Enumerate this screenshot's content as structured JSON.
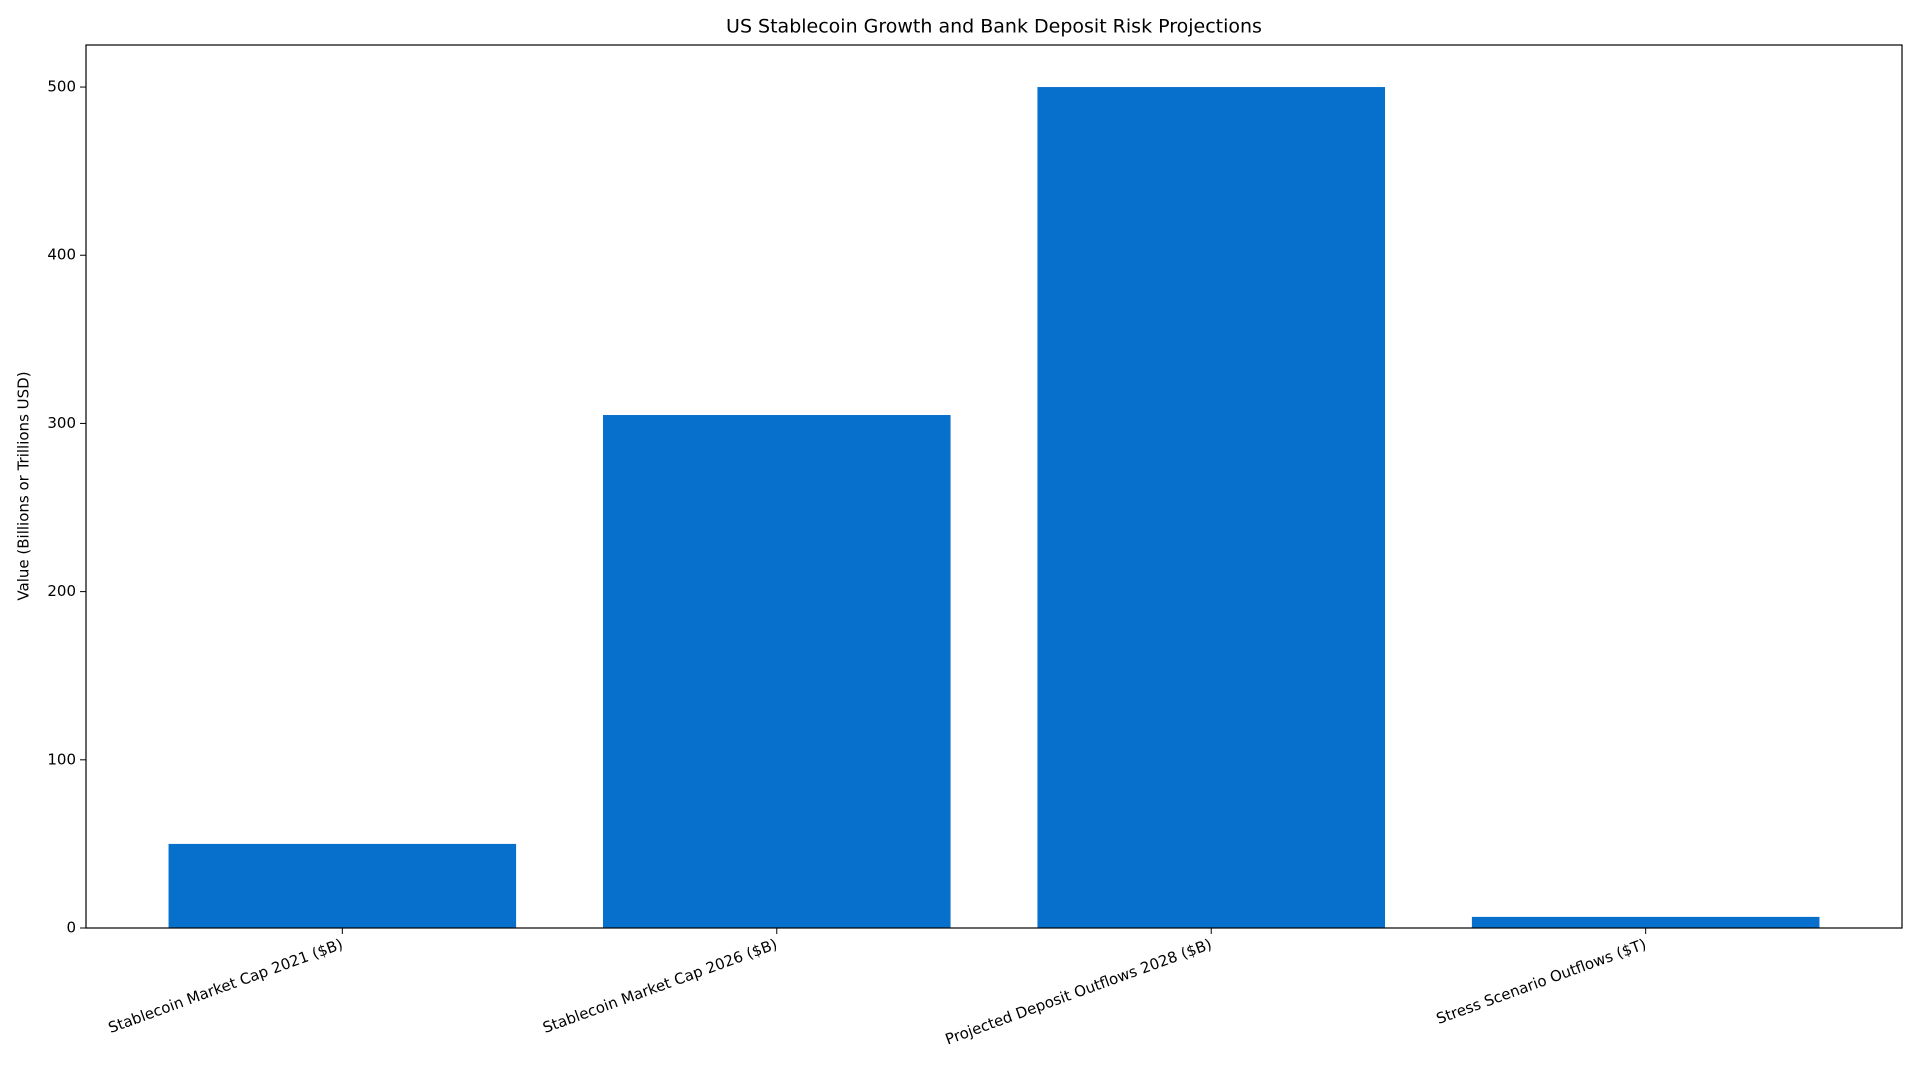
{
  "chart_data": {
    "type": "bar",
    "title": "US Stablecoin Growth and Bank Deposit Risk Projections",
    "y_label": "Value (Billions or Trillions USD)",
    "categories": [
      "Stablecoin Market Cap 2021 ($B)",
      "Stablecoin Market Cap 2026 ($B)",
      "Projected Deposit Outflows 2028 ($B)",
      "Stress Scenario Outflows ($T)"
    ],
    "values": [
      50,
      305,
      500,
      6.6
    ],
    "color": "#0770cc",
    "ylim": [
      0,
      525
    ],
    "yticks": [
      0,
      100,
      200,
      300,
      400,
      500
    ],
    "grid": false
  }
}
